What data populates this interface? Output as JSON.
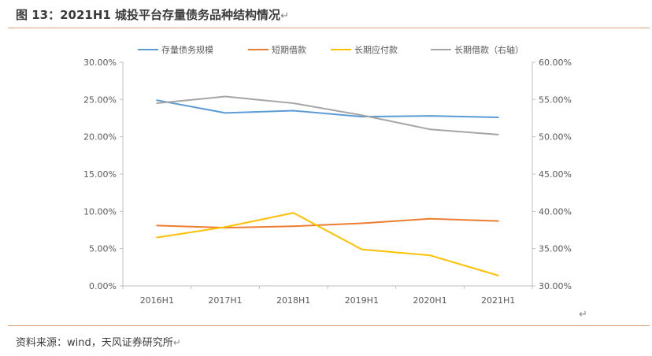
{
  "header": {
    "title": "图 13：2021H1 城投平台存量债务品种结构情况",
    "return_mark": "↵"
  },
  "footer": {
    "source": "资料来源：wind，天风证券研究所",
    "return_mark": "↵"
  },
  "stray_mark": "↵",
  "chart_data": {
    "type": "line",
    "title": "",
    "categories": [
      "2016H1",
      "2017H1",
      "2018H1",
      "2019H1",
      "2020H1",
      "2021H1"
    ],
    "y_left": {
      "ylim": [
        0,
        30
      ],
      "ticks": [
        "0.00%",
        "5.00%",
        "10.00%",
        "15.00%",
        "20.00%",
        "25.00%",
        "30.00%"
      ]
    },
    "y_right": {
      "ylim": [
        30,
        60
      ],
      "ticks": [
        "30.00%",
        "35.00%",
        "40.00%",
        "45.00%",
        "50.00%",
        "55.00%",
        "60.00%"
      ]
    },
    "grid": false,
    "legend_position": "top",
    "series": [
      {
        "name": "存量债务规模",
        "color": "#5b9bd5",
        "axis": "left",
        "values": [
          24.9,
          23.2,
          23.5,
          22.7,
          22.8,
          22.6
        ]
      },
      {
        "name": "短期借款",
        "color": "#ed7d31",
        "axis": "left",
        "values": [
          8.1,
          7.8,
          8.0,
          8.4,
          9.0,
          8.7
        ]
      },
      {
        "name": "长期应付款",
        "color": "#ffc000",
        "axis": "left",
        "values": [
          6.5,
          7.9,
          9.8,
          4.9,
          4.1,
          1.4
        ]
      },
      {
        "name": "长期借款（右轴）",
        "color": "#a5a5a5",
        "axis": "right",
        "values": [
          54.5,
          55.4,
          54.5,
          52.9,
          51.0,
          50.3
        ]
      }
    ]
  }
}
